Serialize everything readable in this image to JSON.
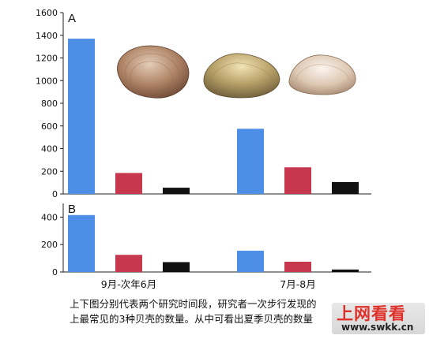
{
  "chart_data": [
    {
      "type": "bar",
      "panel_label": "A",
      "categories": [
        "9月-次年6月",
        "7月-8月"
      ],
      "series": [
        {
          "color": "#4d8fe6",
          "values": [
            1370,
            575
          ]
        },
        {
          "color": "#c7384f",
          "values": [
            185,
            235
          ]
        },
        {
          "color": "#111111",
          "values": [
            55,
            105
          ]
        }
      ],
      "ylim": [
        0,
        1600
      ],
      "yticks": [
        0,
        200,
        400,
        600,
        800,
        1000,
        1200,
        1400,
        1600
      ]
    },
    {
      "type": "bar",
      "panel_label": "B",
      "categories": [
        "9月-次年6月",
        "7月-8月"
      ],
      "series": [
        {
          "color": "#4d8fe6",
          "values": [
            415,
            155
          ]
        },
        {
          "color": "#c7384f",
          "values": [
            125,
            75
          ]
        },
        {
          "color": "#111111",
          "values": [
            72,
            18
          ]
        }
      ],
      "ylim": [
        0,
        500
      ],
      "yticks": [
        0,
        200,
        400
      ]
    }
  ],
  "caption": {
    "line1": "上下图分别代表两个研究时间段，研究者一次步行发现的",
    "line2": "上最常见的3种贝壳的数量。从中可看出夏季贝壳的数量"
  },
  "watermark": {
    "title": "上网看看",
    "url": "www.swkk.cn"
  }
}
